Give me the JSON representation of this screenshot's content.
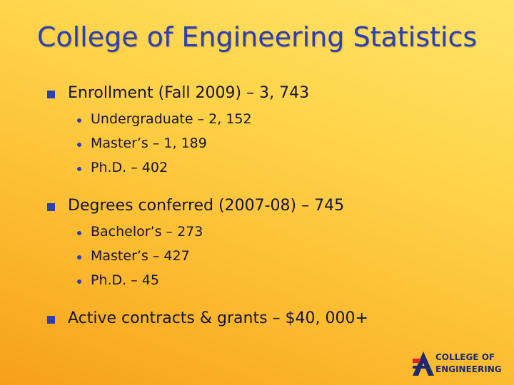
{
  "title": "College of Engineering Statistics",
  "bullets": [
    {
      "text": "Enrollment (Fall 2009) – 3, 743",
      "items": [
        "Undergraduate – 2, 152",
        "Master’s – 1, 189",
        "Ph.D. – 402"
      ]
    },
    {
      "text": "Degrees conferred (2007-08) – 745",
      "items": [
        "Bachelor’s – 273",
        "Master’s – 427",
        "Ph.D. – 45"
      ]
    },
    {
      "text": "Active contracts & grants – $40, 000+",
      "items": []
    }
  ],
  "logo": {
    "line1": "COLLEGE OF",
    "line2": "ENGINEERING"
  }
}
